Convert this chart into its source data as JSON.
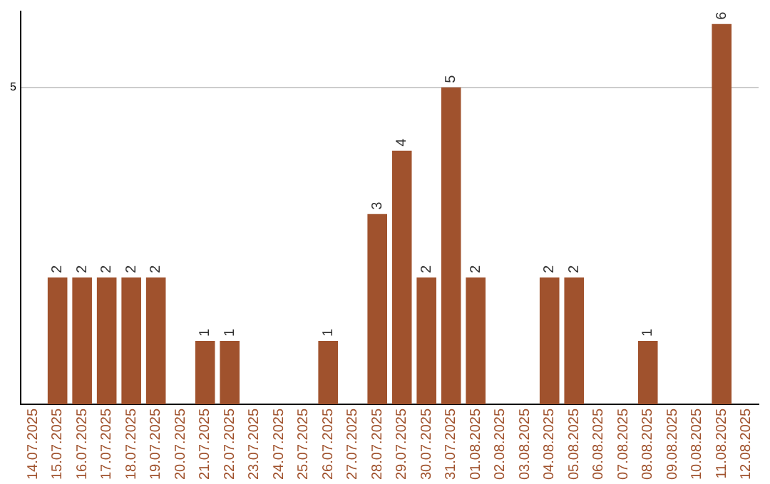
{
  "chart_data": {
    "type": "bar",
    "categories": [
      "14.07.2025",
      "15.07.2025",
      "16.07.2025",
      "17.07.2025",
      "18.07.2025",
      "19.07.2025",
      "20.07.2025",
      "21.07.2025",
      "22.07.2025",
      "23.07.2025",
      "24.07.2025",
      "25.07.2025",
      "26.07.2025",
      "27.07.2025",
      "28.07.2025",
      "29.07.2025",
      "30.07.2025",
      "31.07.2025",
      "01.08.2025",
      "02.08.2025",
      "03.08.2025",
      "04.08.2025",
      "05.08.2025",
      "06.08.2025",
      "07.08.2025",
      "08.08.2025",
      "09.08.2025",
      "10.08.2025",
      "11.08.2025",
      "12.08.2025"
    ],
    "values": [
      0,
      2,
      2,
      2,
      2,
      2,
      0,
      1,
      1,
      0,
      0,
      0,
      1,
      0,
      3,
      4,
      2,
      5,
      2,
      0,
      0,
      2,
      2,
      0,
      0,
      1,
      0,
      0,
      6,
      0
    ],
    "value_labels": [
      null,
      "2",
      "2",
      "2",
      "2",
      "2",
      null,
      "1",
      "1",
      null,
      null,
      null,
      "1",
      null,
      "3",
      "4",
      "2",
      "5",
      "2",
      null,
      null,
      "2",
      "2",
      null,
      null,
      "1",
      null,
      null,
      "6",
      null
    ],
    "color": "#a0522d",
    "ylim": [
      0,
      6.2
    ],
    "yticks": [
      5
    ],
    "grid": "y",
    "legend": false
  }
}
